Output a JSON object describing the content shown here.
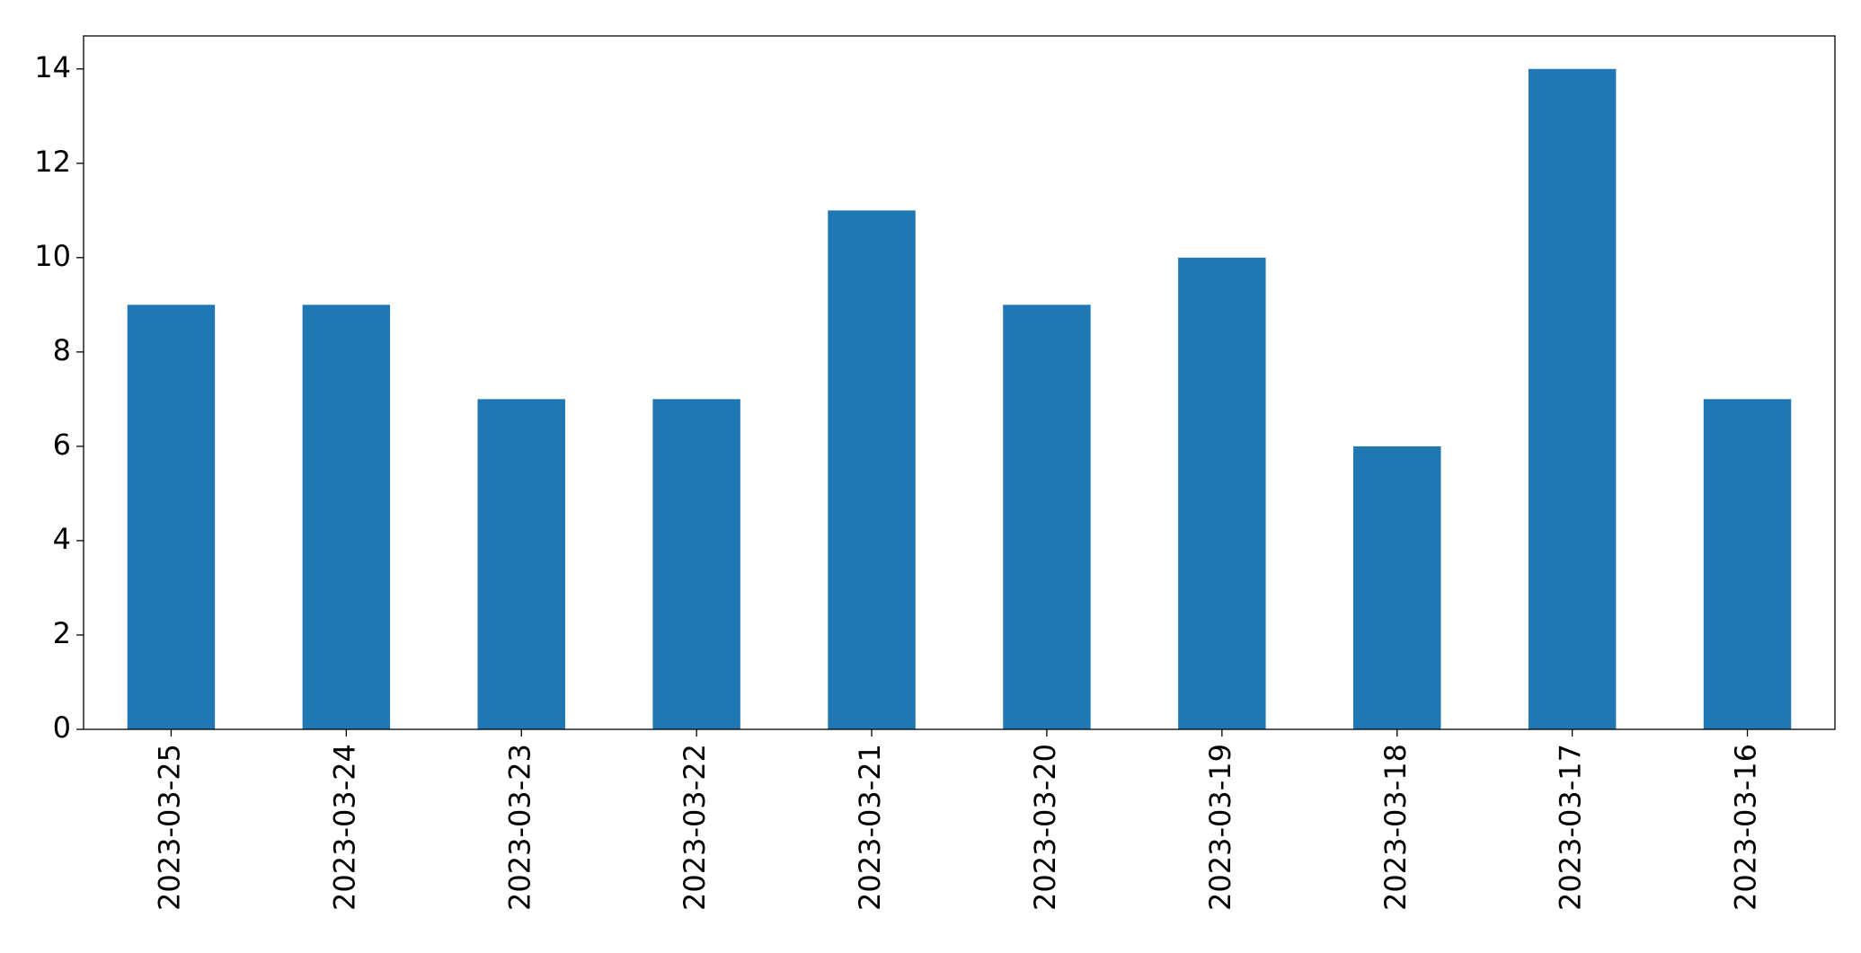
{
  "chart_data": {
    "type": "bar",
    "categories": [
      "2023-03-25",
      "2023-03-24",
      "2023-03-23",
      "2023-03-22",
      "2023-03-21",
      "2023-03-20",
      "2023-03-19",
      "2023-03-18",
      "2023-03-17",
      "2023-03-16"
    ],
    "values": [
      9,
      9,
      7,
      7,
      11,
      9,
      10,
      6,
      14,
      7
    ],
    "color": "#1f77b4",
    "ylim": [
      0,
      14.7
    ],
    "yticks": [
      0,
      2,
      4,
      6,
      8,
      10,
      12,
      14
    ],
    "grid": false
  }
}
